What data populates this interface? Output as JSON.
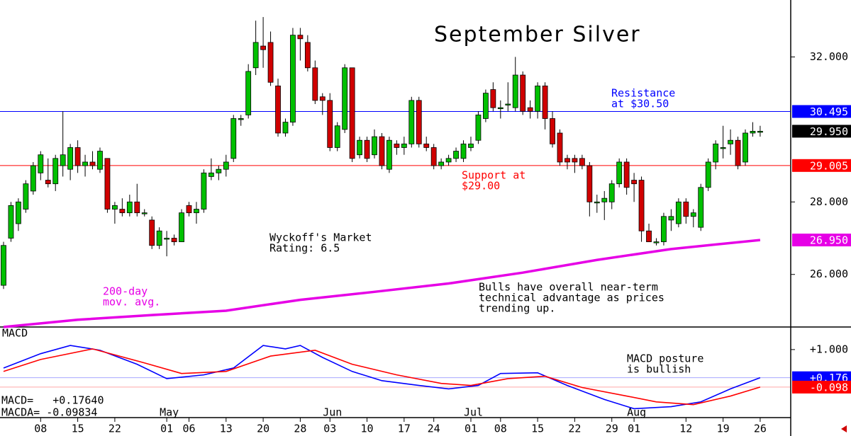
{
  "chart_data": [
    {
      "type": "candlestick",
      "title": "September Silver",
      "categories": [
        null,
        null,
        null,
        null,
        null,
        "08",
        null,
        null,
        null,
        null,
        "15",
        null,
        null,
        null,
        null,
        "22",
        null,
        null,
        null,
        null,
        null,
        null,
        "01",
        null,
        null,
        "06",
        null,
        null,
        null,
        null,
        "13",
        null,
        null,
        null,
        null,
        "20",
        null,
        null,
        null,
        null,
        "28",
        null,
        null,
        null,
        "03",
        null,
        null,
        null,
        null,
        "10",
        null,
        null,
        null,
        null,
        "17",
        null,
        null,
        null,
        "24",
        null,
        null,
        null,
        null,
        "01",
        null,
        null,
        null,
        "08",
        null,
        null,
        null,
        null,
        "15",
        null,
        null,
        null,
        null,
        "22",
        null,
        null,
        null,
        null,
        "29",
        null,
        null,
        "01",
        null,
        null,
        null,
        null,
        null,
        null,
        "12",
        null,
        null,
        null,
        null,
        "19",
        null,
        null,
        null,
        null,
        "26"
      ],
      "months": [
        {
          "value": 22,
          "label": "May"
        },
        {
          "value": 44,
          "label": "Jun"
        },
        {
          "value": 63,
          "label": "Jul"
        },
        {
          "value": 85,
          "label": "Aug"
        }
      ],
      "open": [
        25.7,
        27.0,
        27.4,
        27.8,
        28.3,
        28.8,
        28.6,
        28.5,
        29.0,
        28.9,
        29.5,
        29.0,
        29.1,
        28.9,
        29.2,
        27.8,
        27.8,
        27.7,
        28.0,
        27.7,
        27.5,
        26.8,
        27.0,
        27.0,
        26.9,
        27.9,
        27.7,
        27.8,
        28.7,
        28.8,
        28.9,
        29.2,
        30.3,
        30.4,
        31.7,
        32.3,
        32.4,
        31.2,
        29.9,
        30.2,
        32.6,
        32.4,
        31.7,
        30.9,
        30.8,
        29.5,
        30.0,
        31.7,
        29.3,
        29.7,
        29.3,
        29.8,
        28.9,
        29.6,
        29.5,
        29.6,
        30.8,
        29.6,
        29.5,
        29.0,
        29.1,
        29.2,
        29.2,
        29.5,
        29.7,
        30.3,
        31.1,
        30.6,
        30.7,
        30.6,
        31.5,
        30.6,
        30.5,
        31.2,
        30.3,
        29.9,
        29.2,
        29.2,
        29.2,
        29.0,
        28.0,
        28.0,
        28.0,
        28.5,
        29.1,
        28.6,
        28.6,
        27.2,
        26.9,
        26.9,
        27.5,
        27.4,
        28.0,
        27.6,
        27.3,
        28.4,
        29.1,
        29.5,
        29.6,
        29.7,
        29.1,
        29.9,
        29.95
      ],
      "high": [
        26.9,
        28.0,
        28.1,
        28.6,
        29.1,
        29.4,
        29.2,
        29.3,
        30.5,
        29.6,
        29.7,
        29.3,
        29.4,
        29.5,
        29.2,
        28.0,
        28.1,
        28.2,
        28.5,
        27.8,
        27.6,
        27.3,
        27.2,
        27.1,
        27.8,
        28.0,
        28.0,
        28.9,
        29.2,
        29.0,
        29.3,
        30.4,
        30.4,
        31.8,
        33.0,
        33.1,
        32.7,
        31.4,
        30.3,
        32.8,
        32.8,
        32.6,
        31.9,
        31.0,
        31.0,
        30.2,
        31.8,
        31.7,
        29.8,
        29.8,
        30.0,
        29.9,
        29.8,
        29.7,
        29.8,
        30.9,
        30.9,
        29.8,
        29.6,
        29.2,
        29.3,
        29.5,
        29.7,
        29.8,
        30.5,
        31.1,
        31.3,
        30.8,
        31.3,
        32.0,
        31.6,
        30.8,
        31.3,
        31.3,
        30.5,
        30.0,
        29.3,
        29.3,
        29.3,
        29.1,
        28.2,
        28.3,
        28.6,
        29.2,
        29.2,
        28.8,
        28.7,
        27.4,
        27.0,
        27.7,
        27.8,
        28.1,
        28.1,
        27.8,
        28.5,
        29.2,
        29.7,
        30.1,
        30.0,
        29.8,
        30.0,
        30.2,
        30.1
      ],
      "low": [
        25.6,
        26.9,
        27.2,
        27.7,
        28.2,
        28.6,
        28.4,
        28.3,
        28.7,
        28.6,
        28.8,
        28.7,
        28.9,
        28.8,
        27.7,
        27.4,
        27.6,
        27.6,
        27.6,
        27.6,
        26.7,
        26.7,
        26.5,
        26.8,
        26.9,
        27.6,
        27.4,
        27.7,
        28.6,
        28.6,
        28.7,
        29.1,
        30.1,
        30.3,
        31.5,
        31.7,
        31.2,
        29.8,
        29.8,
        30.1,
        31.9,
        31.6,
        30.7,
        30.4,
        29.4,
        29.4,
        29.9,
        29.1,
        29.2,
        29.1,
        29.2,
        28.9,
        28.8,
        29.3,
        29.3,
        29.5,
        29.5,
        29.4,
        28.9,
        28.9,
        29.0,
        29.1,
        29.1,
        29.4,
        29.6,
        30.2,
        30.5,
        30.3,
        30.5,
        30.5,
        30.4,
        30.3,
        30.3,
        30.0,
        29.5,
        29.0,
        28.9,
        28.8,
        28.9,
        27.6,
        27.7,
        27.5,
        27.8,
        28.4,
        28.2,
        28.0,
        26.9,
        26.9,
        26.8,
        26.8,
        27.2,
        27.3,
        27.4,
        27.3,
        27.2,
        28.3,
        28.9,
        29.2,
        29.3,
        28.9,
        29.0,
        29.8,
        29.8
      ],
      "close": [
        26.8,
        27.9,
        28.0,
        28.5,
        29.0,
        29.3,
        28.5,
        29.2,
        29.3,
        29.5,
        29.0,
        29.1,
        29.0,
        29.4,
        27.8,
        27.9,
        27.7,
        28.0,
        27.7,
        27.7,
        26.8,
        27.2,
        27.0,
        26.9,
        27.7,
        27.7,
        27.8,
        28.8,
        28.8,
        28.9,
        29.1,
        30.3,
        30.3,
        31.6,
        32.4,
        32.2,
        31.3,
        29.9,
        30.2,
        32.6,
        32.5,
        31.7,
        30.8,
        30.8,
        29.5,
        30.1,
        31.7,
        29.2,
        29.7,
        29.2,
        29.8,
        29.0,
        29.7,
        29.5,
        29.6,
        30.8,
        29.6,
        29.5,
        29.0,
        29.1,
        29.2,
        29.4,
        29.6,
        29.6,
        30.4,
        31.0,
        30.6,
        30.6,
        30.7,
        31.5,
        30.5,
        30.5,
        31.2,
        30.3,
        29.6,
        29.1,
        29.1,
        29.1,
        29.0,
        28.0,
        28.0,
        28.1,
        28.5,
        29.1,
        28.4,
        28.5,
        27.2,
        26.9,
        26.9,
        27.6,
        27.6,
        28.0,
        27.6,
        27.7,
        28.4,
        29.1,
        29.6,
        29.5,
        29.7,
        29.0,
        29.9,
        29.95,
        29.95
      ],
      "up_color": "#00c000",
      "down_color": "#d00000",
      "ma": {
        "color": "#e600e6",
        "x": [
          0,
          10,
          20,
          30,
          40,
          50,
          60,
          70,
          80,
          90,
          102
        ],
        "values": [
          24.55,
          24.75,
          24.88,
          25.0,
          25.3,
          25.52,
          25.75,
          26.05,
          26.4,
          26.7,
          26.95
        ]
      },
      "ylim": [
        24.55,
        33.57
      ],
      "yticks": [
        {
          "value": 26,
          "label": "26.000"
        },
        {
          "value": 28,
          "label": "28.000"
        },
        {
          "value": 32,
          "label": "32.000"
        }
      ],
      "levels": [
        {
          "value": 30.495,
          "label": "30.495",
          "color": "#0000ff",
          "line": true
        },
        {
          "value": 29.95,
          "label": "29.950",
          "color": "#000000",
          "line": false
        },
        {
          "value": 29.005,
          "label": "29.005",
          "color": "#ff0000",
          "line": true
        },
        {
          "value": 26.95,
          "label": "26.950",
          "color": "#e600e6",
          "line": false
        }
      ],
      "annotations": [
        {
          "lines": [
            "Resistance",
            "at $30.50"
          ],
          "color": "#0000ff"
        },
        {
          "lines": [
            "Support at",
            "$29.00"
          ],
          "color": "#ff0000"
        },
        {
          "lines": [
            "Wyckoff's Market",
            "Rating: 6.5"
          ],
          "color": "#000000"
        },
        {
          "lines": [
            "200-day",
            "mov. avg."
          ],
          "color": "#e600e6"
        },
        {
          "lines": [
            "Bulls have overall near-term",
            "technical advantage as prices",
            "trending up."
          ],
          "color": "#000000"
        }
      ]
    },
    {
      "type": "line",
      "title": "MACD",
      "series": [
        {
          "color": "#0000ff",
          "x": [
            0,
            5,
            9,
            13,
            18,
            22,
            27,
            31,
            35,
            38,
            40,
            43,
            47,
            51,
            56,
            60,
            64,
            67,
            72,
            76,
            81,
            85,
            90,
            94,
            98,
            102
          ],
          "values": [
            0.46,
            0.88,
            1.12,
            0.98,
            0.57,
            0.15,
            0.26,
            0.46,
            1.12,
            1.02,
            1.12,
            0.77,
            0.36,
            0.09,
            -0.05,
            -0.15,
            -0.05,
            0.3,
            0.32,
            -0.05,
            -0.46,
            -0.73,
            -0.67,
            -0.53,
            -0.15,
            0.176
          ]
        },
        {
          "color": "#ff0000",
          "x": [
            0,
            5,
            12,
            19,
            24,
            30,
            36,
            42,
            47,
            53,
            59,
            63,
            68,
            73,
            78,
            84,
            88,
            93,
            98,
            102
          ],
          "values": [
            0.36,
            0.71,
            1.02,
            0.61,
            0.3,
            0.36,
            0.81,
            0.98,
            0.57,
            0.26,
            0.01,
            -0.05,
            0.15,
            0.22,
            -0.11,
            -0.36,
            -0.53,
            -0.61,
            -0.36,
            -0.098
          ]
        }
      ],
      "ylim": [
        -0.99,
        1.66
      ],
      "yticks": [
        {
          "value": 1,
          "label": "+1.000"
        }
      ],
      "levels": [
        {
          "value": 0.176,
          "label": "+0.176",
          "color": "#0000ff"
        },
        {
          "value": -0.098,
          "label": "-0.098",
          "color": "#ff0000"
        }
      ],
      "annotations": [
        {
          "lines": [
            "MACD posture",
            "is bullish"
          ],
          "color": "#000000"
        },
        {
          "lines": [
            "MACD=   +0.17640",
            "MACDA= -0.09834"
          ],
          "color": "#000000"
        }
      ]
    }
  ]
}
